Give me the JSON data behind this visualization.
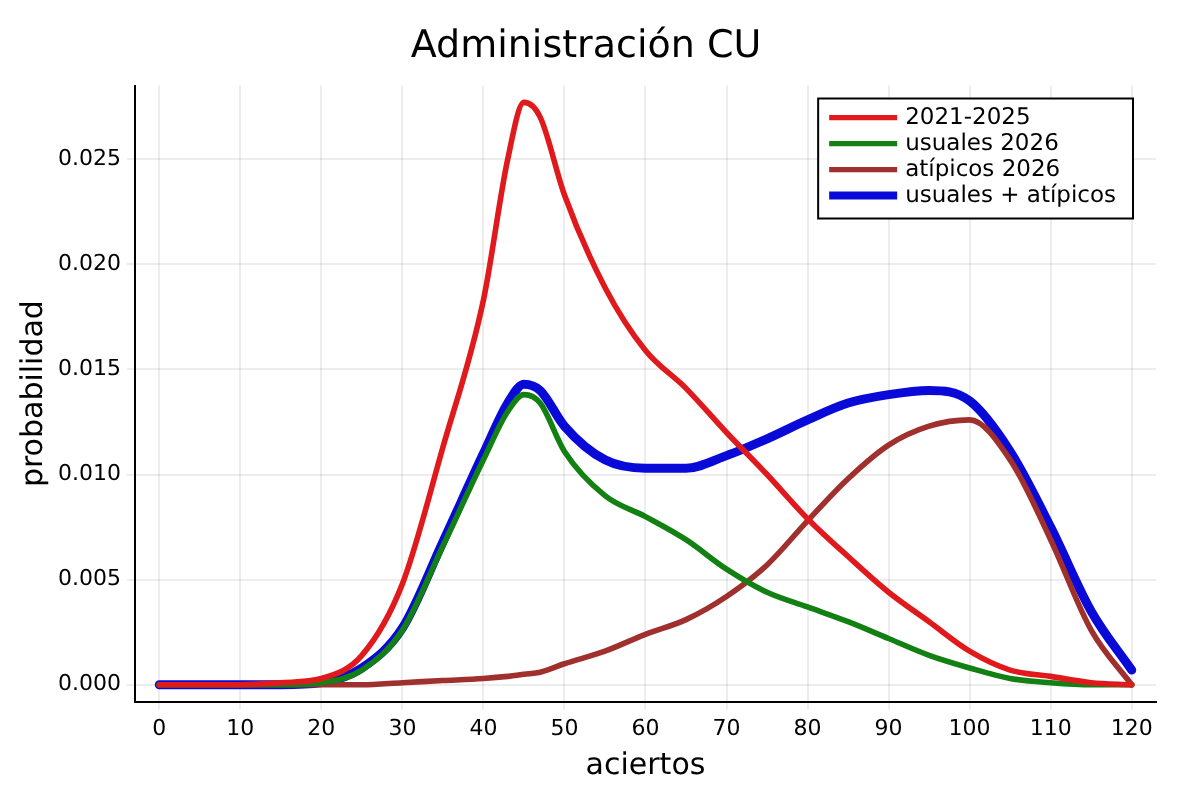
{
  "chart_data": {
    "type": "line",
    "title": "Administración CU",
    "xlabel": "aciertos",
    "ylabel": "probabilidad",
    "x": [
      0,
      10,
      15,
      20,
      25,
      30,
      35,
      40,
      43,
      45,
      47,
      50,
      55,
      60,
      65,
      70,
      75,
      80,
      85,
      90,
      95,
      100,
      105,
      110,
      115,
      120
    ],
    "series": [
      {
        "name": "2021-2025",
        "color": "#e0191c",
        "values": [
          0,
          0,
          0.0001,
          0.0003,
          0.0014,
          0.0048,
          0.0113,
          0.0183,
          0.025,
          0.0277,
          0.027,
          0.0233,
          0.0189,
          0.0159,
          0.0141,
          0.012,
          0.01,
          0.0079,
          0.0061,
          0.0044,
          0.003,
          0.0016,
          0.0007,
          0.0004,
          0.0001,
          0
        ]
      },
      {
        "name": "usuales 2026",
        "color": "#138013",
        "values": [
          0,
          0,
          0,
          0.0001,
          0.0007,
          0.0026,
          0.0066,
          0.0107,
          0.013,
          0.0138,
          0.0134,
          0.0111,
          0.009,
          0.008,
          0.0069,
          0.0055,
          0.0044,
          0.0037,
          0.003,
          0.0022,
          0.0014,
          0.0008,
          0.0003,
          0.0001,
          0,
          0
        ]
      },
      {
        "name": "atípicos 2026",
        "color": "#a0302d",
        "values": [
          0,
          0,
          0,
          0,
          0,
          0.0001,
          0.0002,
          0.0003,
          0.0004,
          0.0005,
          0.0006,
          0.001,
          0.0016,
          0.0024,
          0.0031,
          0.0042,
          0.0057,
          0.0078,
          0.0098,
          0.0114,
          0.0123,
          0.0126,
          0.0107,
          0.0069,
          0.0026,
          0
        ]
      },
      {
        "name": "usuales + atípicos",
        "color": "#0a0ad8",
        "values": [
          0,
          0,
          0,
          0.0001,
          0.0008,
          0.0027,
          0.0068,
          0.011,
          0.0134,
          0.0143,
          0.014,
          0.0123,
          0.0107,
          0.0103,
          0.0103,
          0.0109,
          0.0117,
          0.0126,
          0.0134,
          0.0138,
          0.014,
          0.0135,
          0.0111,
          0.0075,
          0.0035,
          0.0007
        ]
      }
    ],
    "xlim": [
      -3,
      123
    ],
    "xticks": [
      0,
      10,
      20,
      30,
      40,
      50,
      60,
      70,
      80,
      90,
      100,
      110,
      120
    ],
    "ylim": [
      -0.0008,
      0.0285
    ],
    "yticks": [
      {
        "value": 0,
        "label": "0.000"
      },
      {
        "value": 0.005,
        "label": "0.005"
      },
      {
        "value": 0.01,
        "label": "0.010"
      },
      {
        "value": 0.015,
        "label": "0.015"
      },
      {
        "value": 0.02,
        "label": "0.020"
      },
      {
        "value": 0.025,
        "label": "0.025"
      }
    ],
    "grid": true,
    "legend": "top right",
    "marker": "none",
    "line_style": "solid"
  }
}
